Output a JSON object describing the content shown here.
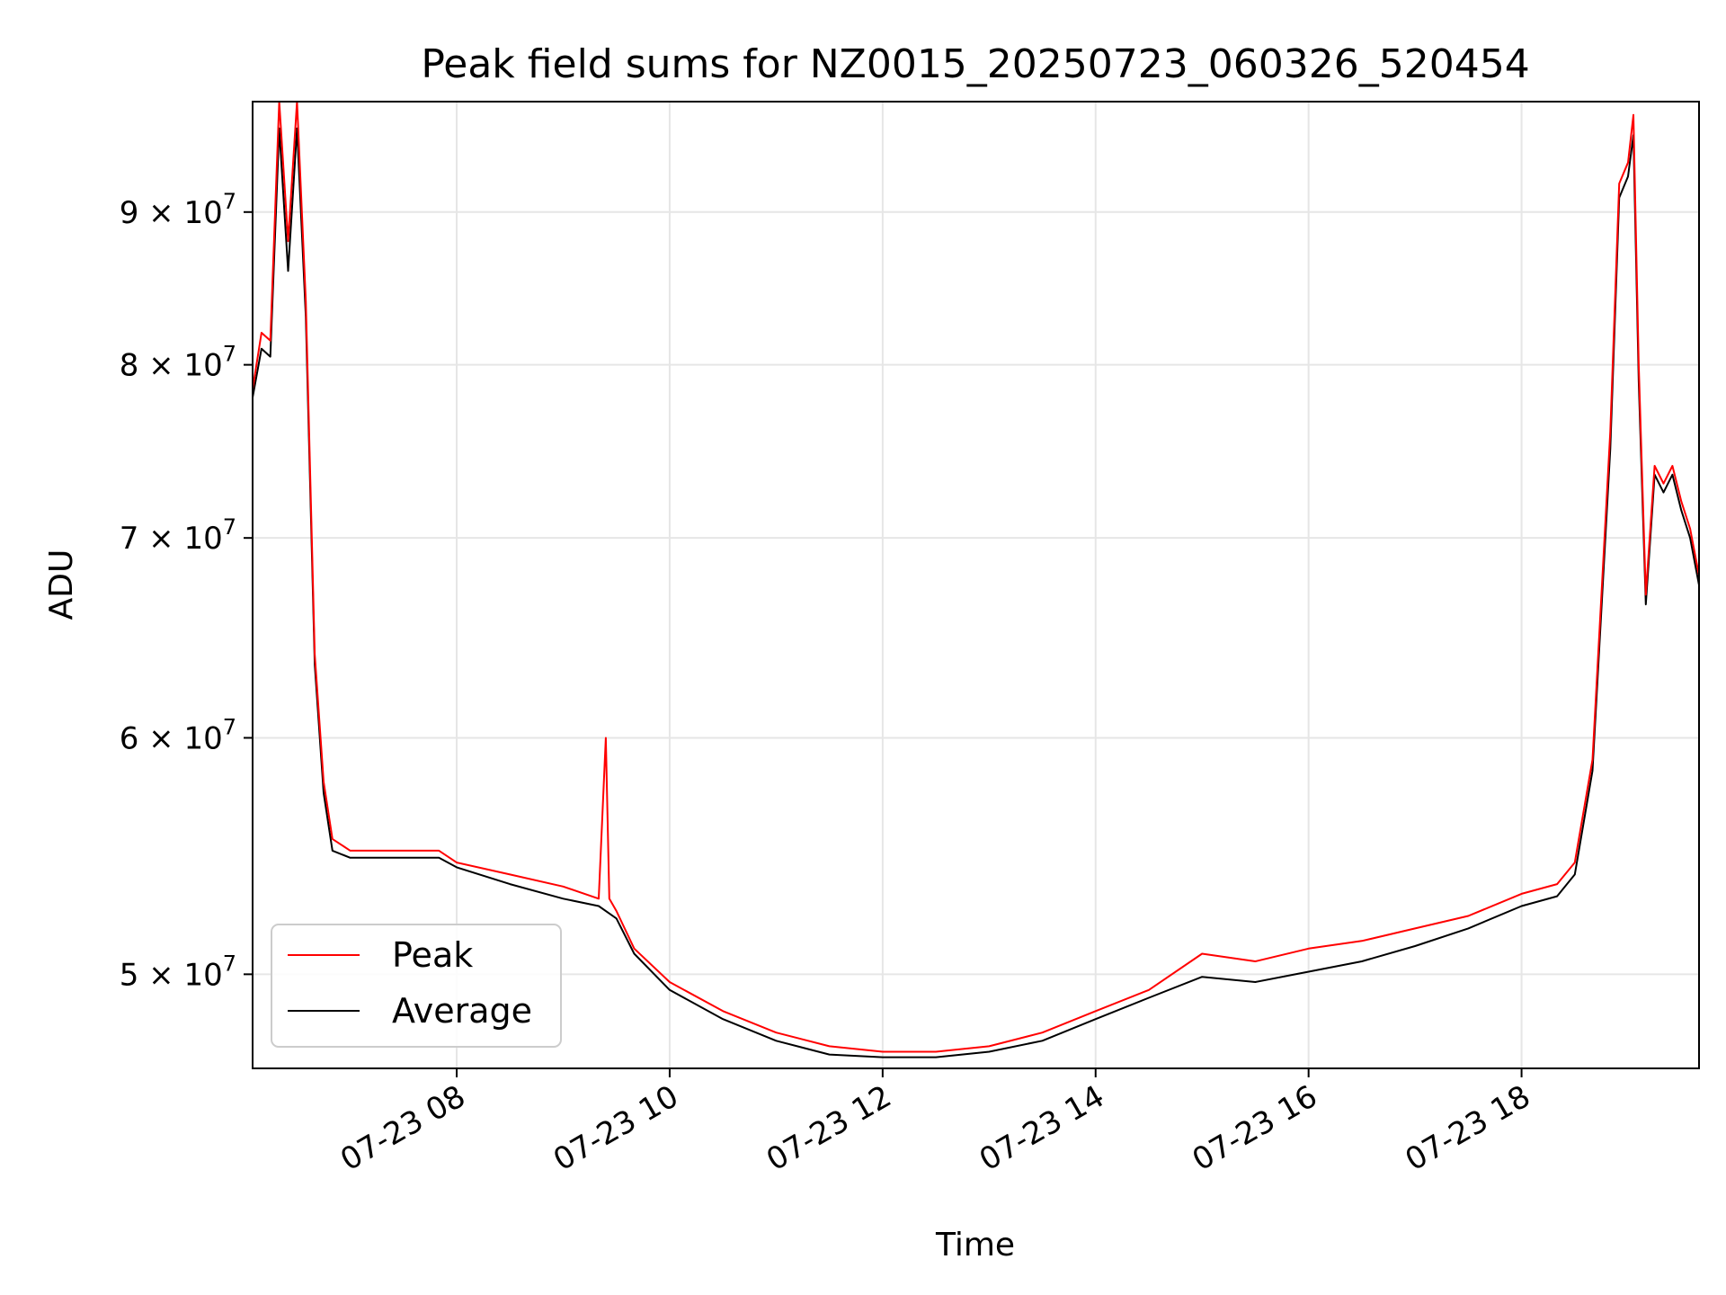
{
  "chart_data": {
    "type": "line",
    "title": "Peak field sums for NZ0015_20250723_060326_520454",
    "xlabel": "Time",
    "ylabel": "ADU",
    "x_range": [
      "2025-07-23 06:05",
      "2025-07-23 19:40"
    ],
    "ylim": [
      46500000,
      98000000
    ],
    "y_scale": "log",
    "grid": true,
    "legend_position": "lower-left",
    "x_ticks": [
      {
        "value": "2025-07-23 08:00",
        "label": "07-23 08"
      },
      {
        "value": "2025-07-23 10:00",
        "label": "07-23 10"
      },
      {
        "value": "2025-07-23 12:00",
        "label": "07-23 12"
      },
      {
        "value": "2025-07-23 14:00",
        "label": "07-23 14"
      },
      {
        "value": "2025-07-23 16:00",
        "label": "07-23 16"
      },
      {
        "value": "2025-07-23 18:00",
        "label": "07-23 18"
      }
    ],
    "y_ticks": [
      {
        "value": 50000000,
        "mantissa": "5",
        "base": "10",
        "exp": "7"
      },
      {
        "value": 60000000,
        "mantissa": "6",
        "base": "10",
        "exp": "7"
      },
      {
        "value": 70000000,
        "mantissa": "7",
        "base": "10",
        "exp": "7"
      },
      {
        "value": 80000000,
        "mantissa": "8",
        "base": "10",
        "exp": "7"
      },
      {
        "value": 90000000,
        "mantissa": "9",
        "base": "10",
        "exp": "7"
      }
    ],
    "series": [
      {
        "name": "Peak",
        "color": "#ff0000",
        "x": [
          "2025-07-23 06:05",
          "2025-07-23 06:10",
          "2025-07-23 06:15",
          "2025-07-23 06:20",
          "2025-07-23 06:25",
          "2025-07-23 06:30",
          "2025-07-23 06:35",
          "2025-07-23 06:40",
          "2025-07-23 06:45",
          "2025-07-23 06:50",
          "2025-07-23 07:00",
          "2025-07-23 07:10",
          "2025-07-23 07:30",
          "2025-07-23 07:50",
          "2025-07-23 08:00",
          "2025-07-23 08:30",
          "2025-07-23 09:00",
          "2025-07-23 09:20",
          "2025-07-23 09:24",
          "2025-07-23 09:26",
          "2025-07-23 09:30",
          "2025-07-23 09:40",
          "2025-07-23 10:00",
          "2025-07-23 10:30",
          "2025-07-23 11:00",
          "2025-07-23 11:30",
          "2025-07-23 12:00",
          "2025-07-23 12:30",
          "2025-07-23 13:00",
          "2025-07-23 13:30",
          "2025-07-23 14:00",
          "2025-07-23 14:30",
          "2025-07-23 15:00",
          "2025-07-23 15:30",
          "2025-07-23 16:00",
          "2025-07-23 16:30",
          "2025-07-23 17:00",
          "2025-07-23 17:30",
          "2025-07-23 18:00",
          "2025-07-23 18:20",
          "2025-07-23 18:30",
          "2025-07-23 18:40",
          "2025-07-23 18:50",
          "2025-07-23 18:55",
          "2025-07-23 19:00",
          "2025-07-23 19:03",
          "2025-07-23 19:06",
          "2025-07-23 19:10",
          "2025-07-23 19:15",
          "2025-07-23 19:20",
          "2025-07-23 19:25",
          "2025-07-23 19:30",
          "2025-07-23 19:35",
          "2025-07-23 19:40"
        ],
        "y": [
          78500000,
          82000000,
          81500000,
          98000000,
          88000000,
          98000000,
          84000000,
          64000000,
          58000000,
          55500000,
          55000000,
          55000000,
          55000000,
          55000000,
          54500000,
          54000000,
          53500000,
          53000000,
          60000000,
          53000000,
          52500000,
          51000000,
          49700000,
          48600000,
          47800000,
          47300000,
          47100000,
          47100000,
          47300000,
          47800000,
          48600000,
          49400000,
          50800000,
          50500000,
          51000000,
          51300000,
          51800000,
          52300000,
          53200000,
          53600000,
          54500000,
          59000000,
          76000000,
          92000000,
          93500000,
          97000000,
          80000000,
          67000000,
          74000000,
          73000000,
          74000000,
          72000000,
          70500000,
          68000000
        ]
      },
      {
        "name": "Average",
        "color": "#000000",
        "x": [
          "2025-07-23 06:05",
          "2025-07-23 06:10",
          "2025-07-23 06:15",
          "2025-07-23 06:20",
          "2025-07-23 06:25",
          "2025-07-23 06:30",
          "2025-07-23 06:35",
          "2025-07-23 06:40",
          "2025-07-23 06:45",
          "2025-07-23 06:50",
          "2025-07-23 07:00",
          "2025-07-23 07:10",
          "2025-07-23 07:30",
          "2025-07-23 07:50",
          "2025-07-23 08:00",
          "2025-07-23 08:30",
          "2025-07-23 09:00",
          "2025-07-23 09:20",
          "2025-07-23 09:30",
          "2025-07-23 09:40",
          "2025-07-23 10:00",
          "2025-07-23 10:30",
          "2025-07-23 11:00",
          "2025-07-23 11:30",
          "2025-07-23 12:00",
          "2025-07-23 12:30",
          "2025-07-23 13:00",
          "2025-07-23 13:30",
          "2025-07-23 14:00",
          "2025-07-23 14:30",
          "2025-07-23 15:00",
          "2025-07-23 15:30",
          "2025-07-23 16:00",
          "2025-07-23 16:30",
          "2025-07-23 17:00",
          "2025-07-23 17:30",
          "2025-07-23 18:00",
          "2025-07-23 18:20",
          "2025-07-23 18:30",
          "2025-07-23 18:40",
          "2025-07-23 18:50",
          "2025-07-23 18:55",
          "2025-07-23 19:00",
          "2025-07-23 19:03",
          "2025-07-23 19:06",
          "2025-07-23 19:10",
          "2025-07-23 19:15",
          "2025-07-23 19:20",
          "2025-07-23 19:25",
          "2025-07-23 19:30",
          "2025-07-23 19:35",
          "2025-07-23 19:40"
        ],
        "y": [
          78000000,
          81000000,
          80500000,
          96000000,
          86000000,
          96000000,
          83000000,
          63500000,
          57500000,
          55000000,
          54700000,
          54700000,
          54700000,
          54700000,
          54300000,
          53600000,
          53000000,
          52700000,
          52200000,
          50800000,
          49400000,
          48300000,
          47500000,
          47000000,
          46900000,
          46900000,
          47100000,
          47500000,
          48300000,
          49100000,
          49900000,
          49700000,
          50100000,
          50500000,
          51100000,
          51800000,
          52700000,
          53100000,
          54000000,
          58500000,
          75000000,
          91000000,
          92500000,
          95500000,
          79000000,
          66500000,
          73500000,
          72500000,
          73500000,
          71500000,
          70000000,
          67500000
        ]
      }
    ]
  }
}
